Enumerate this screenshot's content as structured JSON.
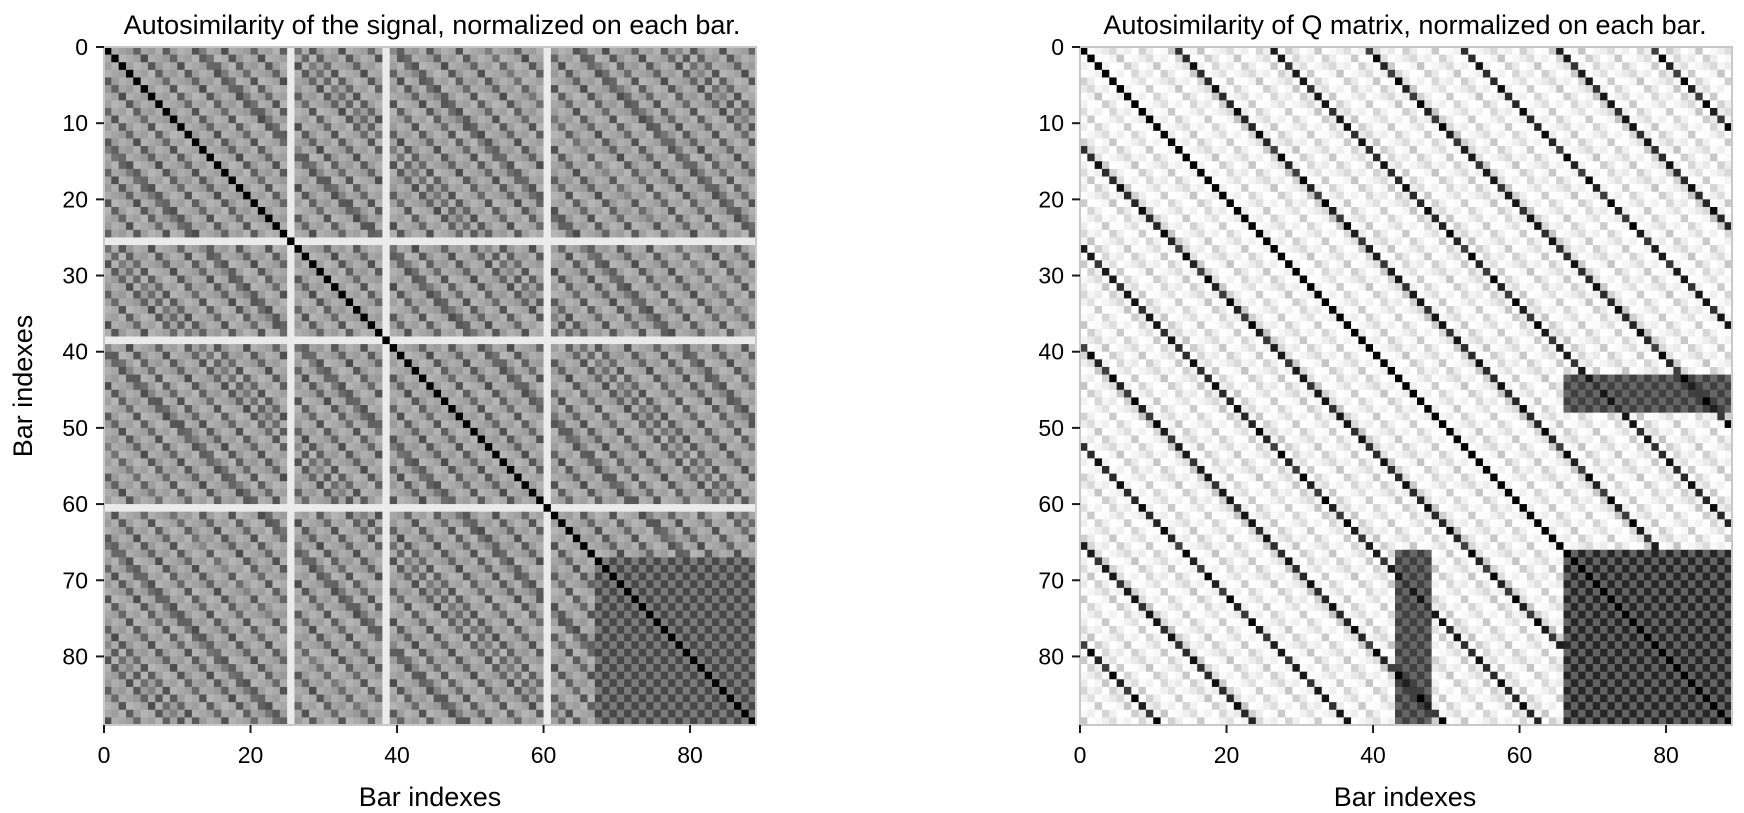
{
  "chart_data": [
    {
      "type": "heatmap",
      "title": "Autosimilarity of the signal, normalized on each bar.",
      "xlabel": "Bar indexes",
      "ylabel": "Bar indexes",
      "n": 89,
      "xlim": [
        0,
        89
      ],
      "ylim": [
        89,
        0
      ],
      "x_ticks": [
        "0",
        "20",
        "40",
        "60",
        "80"
      ],
      "y_ticks": [
        "0",
        "10",
        "20",
        "30",
        "40",
        "50",
        "60",
        "70",
        "80"
      ],
      "x_tick_values": [
        0,
        20,
        40,
        60,
        80
      ],
      "y_tick_values": [
        0,
        10,
        20,
        30,
        40,
        50,
        60,
        70,
        80
      ],
      "colormap": "greys",
      "grid": false,
      "colors": {
        "min": "#ffffff",
        "max": "#000000",
        "frame": "#c8c8c8"
      },
      "similarity": {
        "diagonal": 1.0,
        "base": 0.35,
        "repeat_period": 13,
        "repeat_strength": 0.62,
        "sub_period": 4,
        "sub_strength": 0.3,
        "bright_rows": [
          25,
          38,
          60
        ],
        "bright_level": 0.08,
        "cluster_range": [
          67,
          89
        ],
        "cluster_strength": 0.72
      }
    },
    {
      "type": "heatmap",
      "title": "Autosimilarity of Q matrix, normalized on each bar.",
      "xlabel": "Bar indexes",
      "ylabel": "",
      "n": 89,
      "xlim": [
        0,
        89
      ],
      "ylim": [
        89,
        0
      ],
      "x_ticks": [
        "0",
        "20",
        "40",
        "60",
        "80"
      ],
      "y_ticks": [
        "0",
        "10",
        "20",
        "30",
        "40",
        "50",
        "60",
        "70",
        "80"
      ],
      "x_tick_values": [
        0,
        20,
        40,
        60,
        80
      ],
      "y_tick_values": [
        0,
        10,
        20,
        30,
        40,
        50,
        60,
        70,
        80
      ],
      "colormap": "greys",
      "grid": false,
      "colors": {
        "min": "#ffffff",
        "max": "#000000",
        "frame": "#c8c8c8"
      },
      "similarity": {
        "diagonal": 1.0,
        "base": 0.03,
        "repeat_period": 13,
        "repeat_strength": 0.95,
        "sub_period": 4,
        "sub_strength": 0.15,
        "bright_rows": [],
        "bright_level": 0.0,
        "cluster_range": [
          66,
          89
        ],
        "cluster_strength": 0.85,
        "side_band_rows": [
          43,
          47
        ],
        "side_band_strength": 0.75
      }
    }
  ]
}
